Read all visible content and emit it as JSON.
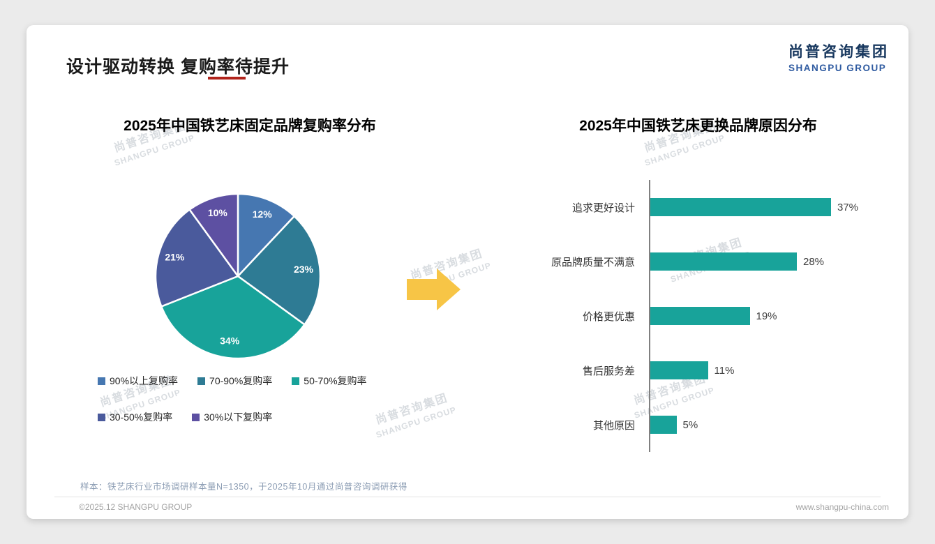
{
  "header": {
    "title": "设计驱动转换 复购率待提升",
    "logo_cn": "尚普咨询集团",
    "logo_en": "SHANGPU GROUP"
  },
  "watermark": {
    "line1": "尚普咨询集团",
    "line2": "SHANGPU GROUP"
  },
  "chart_data": [
    {
      "type": "pie",
      "title": "2025年中国铁艺床固定品牌复购率分布",
      "labels": [
        "90%以上复购率",
        "70-90%复购率",
        "50-70%复购率",
        "30-50%复购率",
        "30%以下复购率"
      ],
      "values": [
        12,
        23,
        34,
        21,
        10
      ],
      "data_labels": [
        "12%",
        "23%",
        "34%",
        "21%",
        "10%"
      ],
      "colors": [
        "#4677b1",
        "#2e7b94",
        "#18a39a",
        "#4a5a9c",
        "#5d50a2"
      ],
      "start_angle": 0,
      "direction": "clockwise",
      "legend_position": "bottom"
    },
    {
      "type": "bar",
      "orientation": "horizontal",
      "title": "2025年中国铁艺床更换品牌原因分布",
      "categories": [
        "追求更好设计",
        "原品牌质量不满意",
        "价格更优惠",
        "售后服务差",
        "其他原因"
      ],
      "values": [
        37,
        28,
        19,
        11,
        5
      ],
      "value_labels": [
        "37%",
        "28%",
        "19%",
        "11%",
        "5%"
      ],
      "bar_color": "#18a39a",
      "xlim": [
        0,
        40
      ],
      "grid": false
    }
  ],
  "footer": {
    "note": "样本：铁艺床行业市场调研样本量N=1350，于2025年10月通过尚普咨询调研获得",
    "copyright": "©2025.12 SHANGPU GROUP",
    "website": "www.shangpu-china.com"
  },
  "accent_color": "#b1241c",
  "arrow_color": "#f7c546"
}
